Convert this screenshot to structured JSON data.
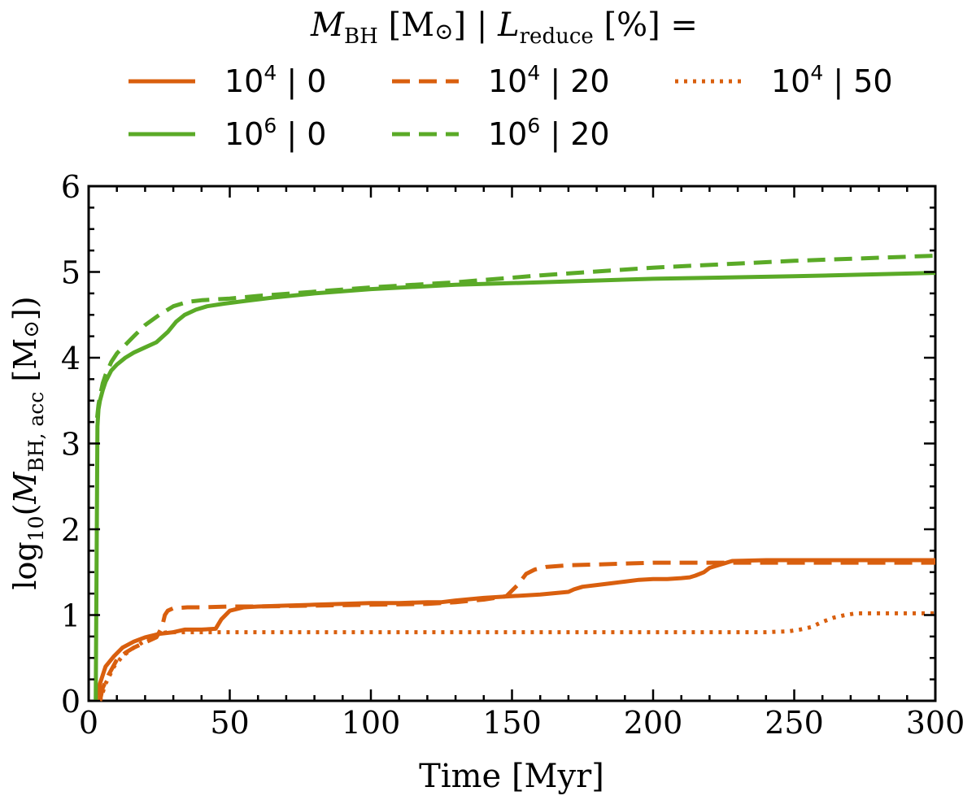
{
  "chart_data": {
    "type": "line",
    "title": "",
    "legend": {
      "title_parts": {
        "m_sym": "M",
        "m_sub": "BH",
        "m_unit": "[M",
        "sun": "⊙",
        "bar": "] |",
        "l_sym": "L",
        "l_sub": "reduce",
        "l_unit": "[%] ="
      },
      "placement": "top-center"
    },
    "xlabel": "Time [Myr]",
    "ylabel_parts": {
      "log": "log",
      "log_sub": "10",
      "open": "(",
      "m_sym": "M",
      "m_sub": "BH, acc",
      "unit": "[M",
      "sun": "⊙",
      "close": "])"
    },
    "xlim": [
      0,
      300
    ],
    "ylim": [
      0,
      6
    ],
    "xticks": [
      0,
      50,
      100,
      150,
      200,
      250,
      300
    ],
    "yticks": [
      0,
      1,
      2,
      3,
      4,
      5,
      6
    ],
    "series": [
      {
        "name": "10^4 | 0",
        "base": "10",
        "exp": "4",
        "reduce": "0",
        "color": "#d95f0e",
        "style": "solid",
        "x": [
          2.5,
          4,
          6,
          9,
          12,
          16,
          20,
          25,
          30,
          34,
          40,
          45,
          47,
          50,
          55,
          60,
          70,
          80,
          90,
          100,
          110,
          120,
          125,
          130,
          140,
          150,
          160,
          170,
          172,
          175,
          180,
          185,
          190,
          195,
          200,
          205,
          210,
          213,
          215,
          218,
          220,
          222,
          225,
          228,
          240,
          260,
          280,
          300
        ],
        "y": [
          0,
          0.2,
          0.4,
          0.52,
          0.62,
          0.69,
          0.74,
          0.78,
          0.8,
          0.83,
          0.83,
          0.84,
          0.95,
          1.05,
          1.09,
          1.1,
          1.11,
          1.12,
          1.13,
          1.14,
          1.14,
          1.15,
          1.15,
          1.17,
          1.2,
          1.22,
          1.24,
          1.27,
          1.3,
          1.33,
          1.35,
          1.37,
          1.39,
          1.41,
          1.42,
          1.42,
          1.43,
          1.44,
          1.46,
          1.5,
          1.55,
          1.57,
          1.6,
          1.63,
          1.64,
          1.64,
          1.64,
          1.64
        ]
      },
      {
        "name": "10^4 | 20",
        "base": "10",
        "exp": "4",
        "reduce": "20",
        "color": "#d95f0e",
        "style": "dashed",
        "x": [
          4,
          5,
          7,
          10,
          13,
          16,
          20,
          24,
          26,
          27,
          28,
          30,
          35,
          40,
          50,
          60,
          80,
          100,
          120,
          130,
          140,
          148,
          152,
          155,
          158,
          162,
          170,
          180,
          190,
          200,
          210,
          220,
          230,
          260,
          300
        ],
        "y": [
          0,
          0.15,
          0.3,
          0.48,
          0.56,
          0.62,
          0.68,
          0.74,
          0.86,
          1.0,
          1.05,
          1.08,
          1.09,
          1.09,
          1.1,
          1.1,
          1.11,
          1.12,
          1.13,
          1.15,
          1.18,
          1.22,
          1.35,
          1.48,
          1.53,
          1.56,
          1.58,
          1.59,
          1.6,
          1.61,
          1.61,
          1.61,
          1.61,
          1.61,
          1.61
        ]
      },
      {
        "name": "10^4 | 50",
        "base": "10",
        "exp": "4",
        "reduce": "50",
        "color": "#d95f0e",
        "style": "dotted",
        "x": [
          4,
          6,
          9,
          12,
          16,
          20,
          24,
          26,
          28,
          32,
          40,
          60,
          100,
          150,
          200,
          240,
          248,
          252,
          256,
          260,
          264,
          268,
          272,
          280,
          300
        ],
        "y": [
          0,
          0.2,
          0.4,
          0.52,
          0.62,
          0.7,
          0.76,
          0.79,
          0.8,
          0.8,
          0.8,
          0.8,
          0.8,
          0.8,
          0.8,
          0.8,
          0.81,
          0.83,
          0.86,
          0.92,
          0.97,
          1.0,
          1.02,
          1.02,
          1.02
        ]
      },
      {
        "name": "10^6 | 0",
        "base": "10",
        "exp": "6",
        "reduce": "0",
        "color": "#5aaa27",
        "style": "solid",
        "x": [
          2.5,
          2.8,
          3.1,
          3.5,
          4,
          5,
          6,
          8,
          10,
          13,
          16,
          20,
          24,
          28,
          31,
          34,
          38,
          42,
          48,
          55,
          65,
          80,
          100,
          130,
          160,
          200,
          250,
          300
        ],
        "y": [
          0,
          1.5,
          3.2,
          3.4,
          3.5,
          3.62,
          3.72,
          3.85,
          3.92,
          4.0,
          4.06,
          4.12,
          4.18,
          4.3,
          4.42,
          4.5,
          4.56,
          4.6,
          4.63,
          4.66,
          4.7,
          4.75,
          4.8,
          4.85,
          4.88,
          4.92,
          4.95,
          4.99
        ]
      },
      {
        "name": "10^6 | 20",
        "base": "10",
        "exp": "6",
        "reduce": "20",
        "color": "#5aaa27",
        "style": "dashed",
        "x": [
          3,
          3.5,
          4,
          5,
          6,
          8,
          10,
          13,
          16,
          20,
          25,
          30,
          35,
          40,
          50,
          60,
          80,
          100,
          130,
          160,
          200,
          250,
          300
        ],
        "y": [
          3.3,
          3.45,
          3.55,
          3.7,
          3.8,
          3.95,
          4.05,
          4.15,
          4.25,
          4.38,
          4.5,
          4.6,
          4.65,
          4.67,
          4.69,
          4.72,
          4.77,
          4.82,
          4.88,
          4.96,
          5.05,
          5.13,
          5.19
        ]
      }
    ]
  }
}
